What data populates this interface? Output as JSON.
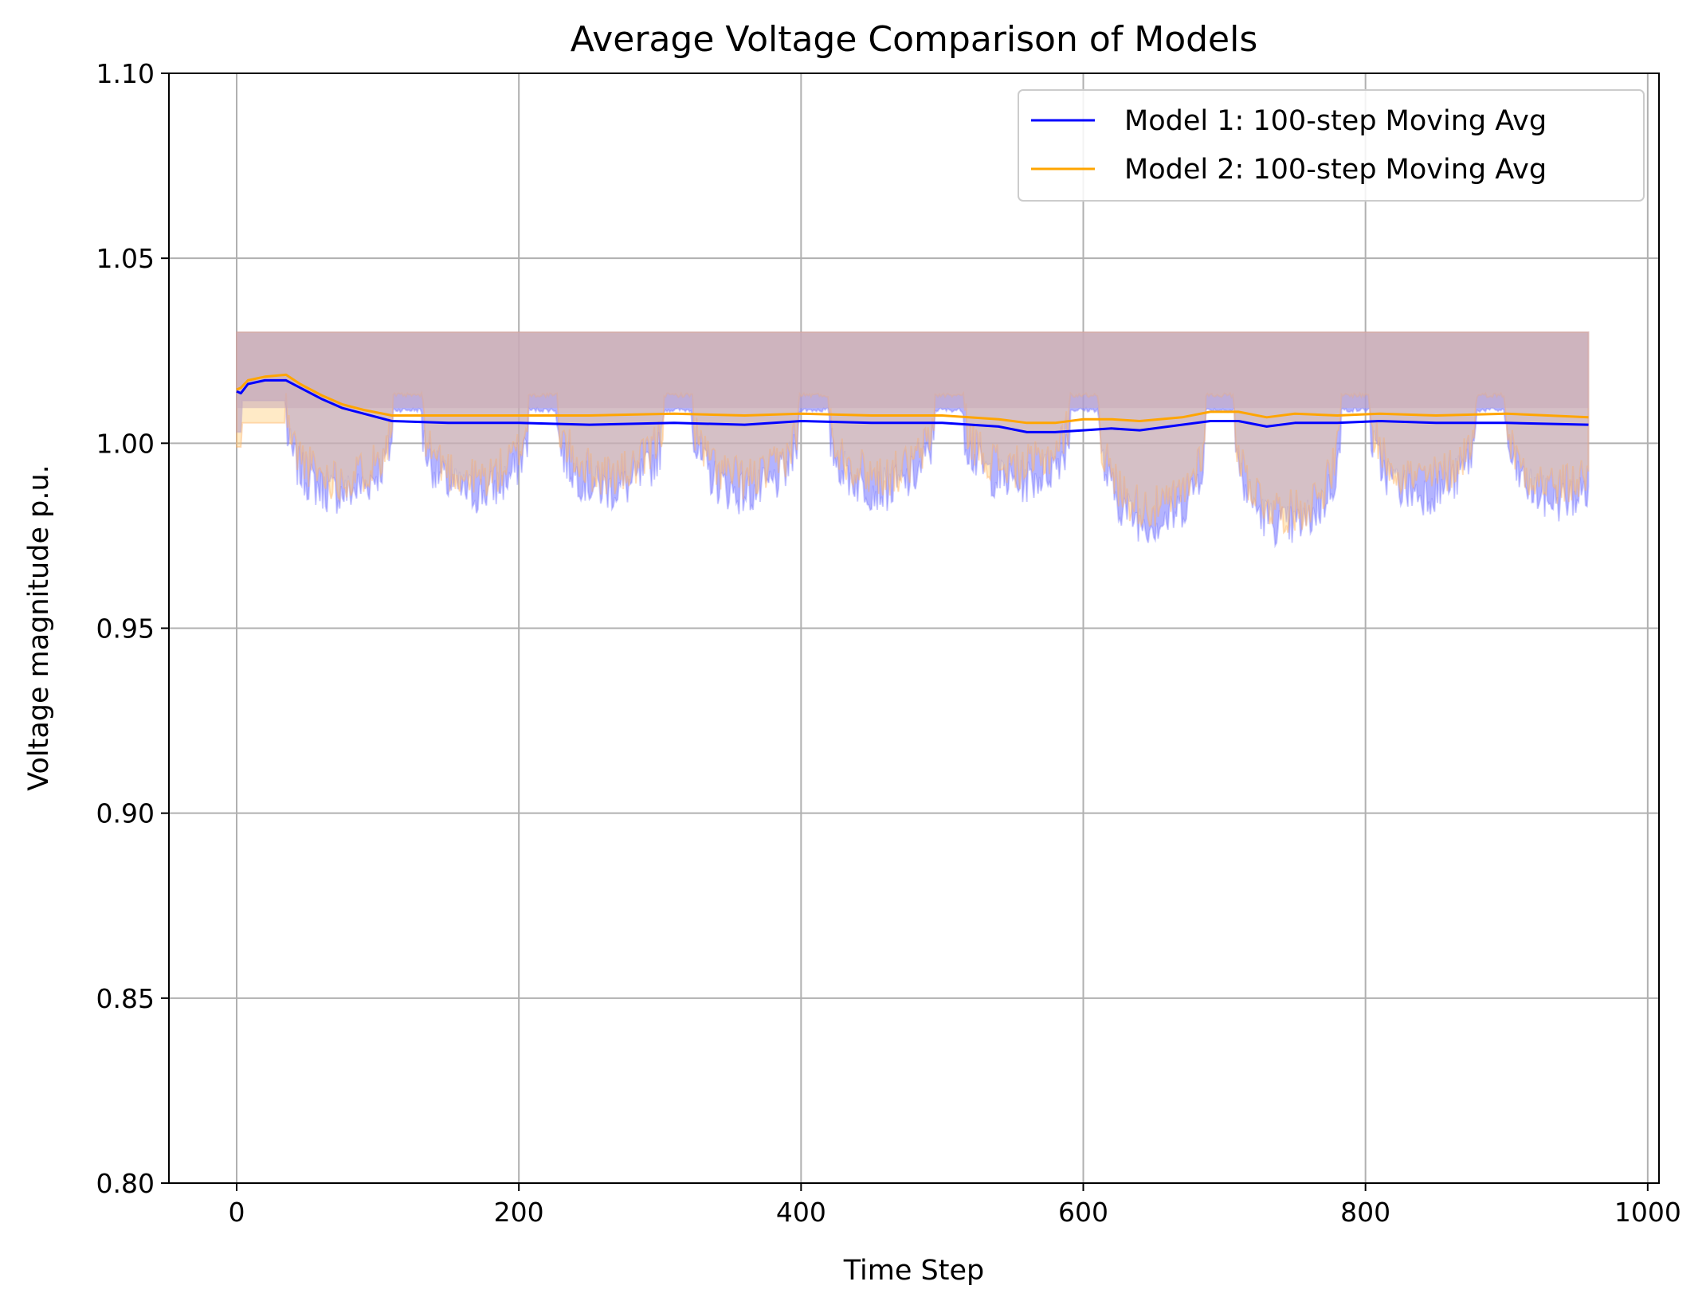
{
  "chart_data": {
    "type": "line",
    "title": "Average Voltage Comparison of Models",
    "xlabel": "Time Step",
    "ylabel": "Voltage magnitude p.u.",
    "xlim": [
      -48,
      1008
    ],
    "ylim": [
      0.8,
      1.1
    ],
    "x_ticks": [
      0,
      200,
      400,
      600,
      800,
      1000
    ],
    "x_tick_labels": [
      "0",
      "200",
      "400",
      "600",
      "800",
      "1000"
    ],
    "y_ticks": [
      0.8,
      0.85,
      0.9,
      0.95,
      1.0,
      1.05,
      1.1
    ],
    "y_tick_labels": [
      "0.80",
      "0.85",
      "0.90",
      "0.95",
      "1.00",
      "1.05",
      "1.10"
    ],
    "grid": true,
    "legend_position": "top-right",
    "band_upper": 1.03,
    "band_x_range": [
      0,
      958
    ],
    "series": [
      {
        "name": "Model 1: 100-step Moving Avg",
        "color": "#0000ff",
        "fill_color": "#8080ff",
        "x": [
          0,
          3,
          8,
          20,
          35,
          45,
          60,
          75,
          90,
          110,
          150,
          200,
          250,
          310,
          360,
          400,
          450,
          500,
          540,
          560,
          580,
          600,
          620,
          640,
          670,
          690,
          710,
          730,
          750,
          780,
          810,
          850,
          900,
          958
        ],
        "values": [
          1.014,
          1.0135,
          1.016,
          1.017,
          1.017,
          1.015,
          1.012,
          1.0095,
          1.008,
          1.006,
          1.0055,
          1.0055,
          1.005,
          1.0055,
          1.005,
          1.006,
          1.0055,
          1.0055,
          1.0045,
          1.003,
          1.003,
          1.0035,
          1.004,
          1.0035,
          1.005,
          1.006,
          1.006,
          1.0045,
          1.0055,
          1.0055,
          1.006,
          1.0055,
          1.0055,
          1.005
        ],
        "min_floor_lows": [
          0.9805,
          0.9805,
          0.9815,
          0.9805,
          0.9815,
          0.9835,
          0.9725,
          0.9715,
          0.9805,
          0.9785
        ]
      },
      {
        "name": "Model 2: 100-step Moving Avg",
        "color": "#ffa500",
        "fill_color": "#ffd080",
        "x": [
          0,
          3,
          8,
          20,
          35,
          45,
          60,
          75,
          90,
          110,
          150,
          200,
          250,
          310,
          360,
          400,
          450,
          500,
          540,
          560,
          580,
          600,
          620,
          640,
          670,
          690,
          710,
          730,
          750,
          780,
          810,
          850,
          900,
          958
        ],
        "values": [
          1.0145,
          1.015,
          1.017,
          1.018,
          1.0185,
          1.016,
          1.013,
          1.0105,
          1.009,
          1.0075,
          1.0075,
          1.0075,
          1.0075,
          1.008,
          1.0075,
          1.008,
          1.0075,
          1.0075,
          1.0065,
          1.0055,
          1.0055,
          1.0065,
          1.0065,
          1.006,
          1.007,
          1.0085,
          1.0085,
          1.007,
          1.008,
          1.0075,
          1.008,
          1.0075,
          1.008,
          1.007
        ]
      }
    ]
  }
}
